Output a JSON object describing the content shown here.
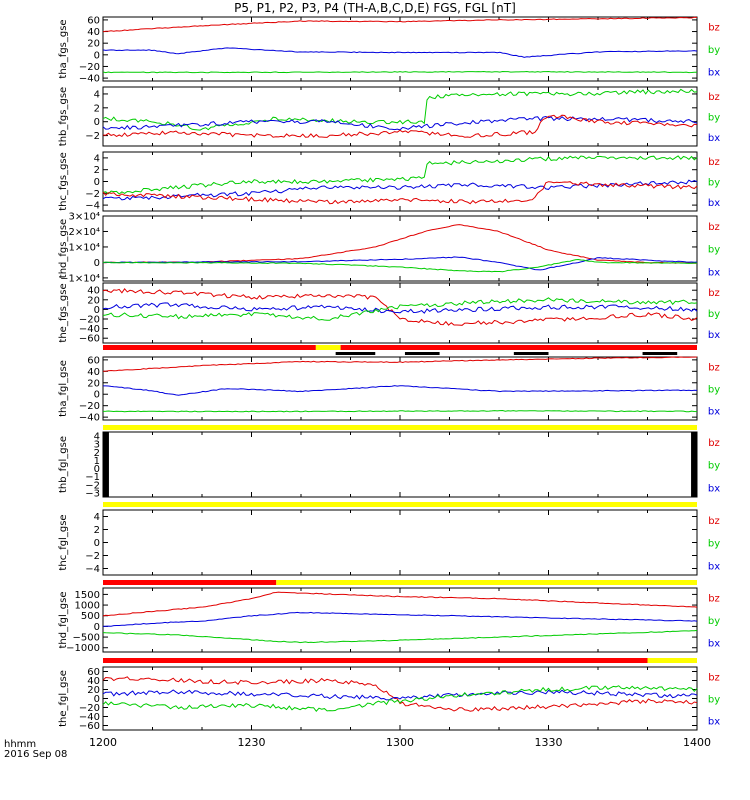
{
  "title": "P5, P1, P2, P3, P4 (TH-A,B,C,D,E) FGS, FGL [nT]",
  "time_label": "hhmm",
  "date_label": "2016 Sep 08",
  "chart_data": {
    "type": "line",
    "x_unit": "hhmm",
    "x_range": [
      "1200",
      "1400"
    ],
    "x_ticks": [
      "1200",
      "1230",
      "1300",
      "1330",
      "1400"
    ],
    "component_colors": {
      "bz": "#e00000",
      "by": "#00cc00",
      "bx": "#0000dd"
    },
    "status_colors": {
      "red": "#ff0000",
      "yellow": "#ffff00",
      "black": "#000000"
    },
    "panels": [
      {
        "ylabel": "tha_fgs_gse",
        "ylim": [
          -45,
          65
        ],
        "yticks": [
          "60",
          "40",
          "20",
          "0",
          "−20",
          "−40"
        ],
        "ytick_values": [
          60,
          40,
          20,
          0,
          -20,
          -40
        ],
        "legend": [
          "bz",
          "by",
          "bx"
        ],
        "series": [
          {
            "name": "bz",
            "x": [
              0,
              20,
              40,
              60,
              80,
              100,
              120
            ],
            "y": [
              40,
              50,
              58,
              57,
              60,
              62,
              64
            ]
          },
          {
            "name": "bx",
            "x": [
              0,
              10,
              15,
              25,
              40,
              60,
              80,
              85,
              100,
              120
            ],
            "y": [
              8,
              8,
              2,
              12,
              5,
              4,
              4,
              -4,
              5,
              7
            ]
          },
          {
            "name": "by",
            "x": [
              0,
              40,
              80,
              120
            ],
            "y": [
              -30,
              -30,
              -29,
              -30
            ]
          }
        ]
      },
      {
        "ylabel": "thb_fgs_gse",
        "ylim": [
          -3.5,
          5
        ],
        "yticks": [
          "4",
          "2",
          "0",
          "−2"
        ],
        "ytick_values": [
          4,
          2,
          0,
          -2
        ],
        "legend": [
          "bz",
          "by",
          "bx"
        ],
        "series": [
          {
            "name": "by",
            "x": [
              0,
              10,
              20,
              35,
              50,
              65,
              65.5,
              80,
              95,
              120
            ],
            "y": [
              0.5,
              0,
              -1,
              0.5,
              0,
              0,
              3.5,
              4,
              4,
              4.5
            ]
          },
          {
            "name": "bx",
            "x": [
              0,
              15,
              30,
              45,
              60,
              75,
              90,
              105,
              120
            ],
            "y": [
              -1,
              -0.5,
              0,
              0,
              -1,
              0,
              0.5,
              0.3,
              0
            ]
          },
          {
            "name": "bz",
            "x": [
              0,
              15,
              30,
              45,
              60,
              75,
              87,
              90,
              100,
              120
            ],
            "y": [
              -2,
              -1.5,
              -2,
              -2,
              -1.5,
              -2,
              -1.5,
              1,
              0,
              -0.5
            ]
          }
        ]
      },
      {
        "ylabel": "thc_fgs_gse",
        "ylim": [
          -5,
          5
        ],
        "yticks": [
          "4",
          "2",
          "0",
          "−2",
          "−4"
        ],
        "ytick_values": [
          4,
          2,
          0,
          -2,
          -4
        ],
        "legend": [
          "bz",
          "by",
          "bx"
        ],
        "series": [
          {
            "name": "by",
            "x": [
              0,
              15,
              30,
              45,
              65,
              65.5,
              80,
              95,
              120
            ],
            "y": [
              -2,
              -1,
              0,
              0,
              0.5,
              3,
              3.5,
              4,
              4
            ]
          },
          {
            "name": "bx",
            "x": [
              0,
              15,
              30,
              45,
              60,
              75,
              90,
              105,
              120
            ],
            "y": [
              -3,
              -2.5,
              -2,
              -1,
              -1,
              -0.5,
              -1,
              -0.5,
              0
            ]
          },
          {
            "name": "bz",
            "x": [
              0,
              15,
              30,
              45,
              60,
              75,
              87,
              90,
              100,
              120
            ],
            "y": [
              -2,
              -2.5,
              -3,
              -3.5,
              -3,
              -3.5,
              -3,
              0,
              -0.5,
              -1
            ]
          }
        ]
      },
      {
        "ylabel": "thd_fgs_gse",
        "ylim": [
          -12000,
          30000
        ],
        "yticks": [
          "3×10⁴",
          "2×10⁴",
          "1×10⁴",
          "0",
          "−1×10⁴"
        ],
        "ytick_values": [
          30000,
          20000,
          10000,
          0,
          -10000
        ],
        "legend": [
          "bz",
          "by",
          "bx"
        ],
        "series": [
          {
            "name": "bz",
            "x": [
              0,
              20,
              40,
              55,
              65,
              72,
              80,
              90,
              100,
              110,
              120
            ],
            "y": [
              0,
              200,
              2500,
              10000,
              20000,
              24500,
              20000,
              8000,
              1500,
              0,
              -500
            ]
          },
          {
            "name": "bx",
            "x": [
              0,
              40,
              60,
              72,
              80,
              88,
              96,
              100,
              120
            ],
            "y": [
              0,
              500,
              2000,
              3500,
              0,
              -5000,
              0,
              3000,
              0
            ]
          },
          {
            "name": "by",
            "x": [
              0,
              40,
              60,
              72,
              80,
              88,
              96,
              100,
              120
            ],
            "y": [
              0,
              -500,
              -3000,
              -5500,
              -6000,
              -3000,
              2000,
              0,
              -500
            ]
          }
        ]
      },
      {
        "ylabel": "the_fgs_gse",
        "ylim": [
          -70,
          55
        ],
        "yticks": [
          "40",
          "20",
          "0",
          "−20",
          "−40",
          "−60"
        ],
        "ytick_values": [
          40,
          20,
          0,
          -20,
          -40,
          -60
        ],
        "legend": [
          "bz",
          "by",
          "bx"
        ],
        "series": [
          {
            "name": "bz",
            "x": [
              0,
              15,
              30,
              45,
              55,
              60,
              70,
              85,
              95,
              110,
              120
            ],
            "y": [
              40,
              35,
              25,
              30,
              25,
              -20,
              -30,
              -25,
              -20,
              -10,
              -20
            ]
          },
          {
            "name": "bx",
            "x": [
              0,
              15,
              30,
              45,
              60,
              75,
              90,
              105,
              120
            ],
            "y": [
              5,
              10,
              0,
              5,
              -5,
              0,
              5,
              5,
              0
            ]
          },
          {
            "name": "by",
            "x": [
              0,
              15,
              30,
              45,
              60,
              75,
              90,
              105,
              120
            ],
            "y": [
              -10,
              -15,
              -10,
              -20,
              5,
              15,
              20,
              15,
              15
            ]
          }
        ],
        "status_bar": [
          {
            "color": "red",
            "from": 0,
            "to": 43
          },
          {
            "color": "yellow",
            "from": 43,
            "to": 48
          },
          {
            "color": "red",
            "from": 48,
            "to": 120
          }
        ],
        "sub_marks": [
          {
            "from": 47,
            "to": 55
          },
          {
            "from": 61,
            "to": 68
          },
          {
            "from": 83,
            "to": 90
          },
          {
            "from": 109,
            "to": 116
          }
        ]
      },
      {
        "ylabel": "tha_fgl_gse",
        "ylim": [
          -45,
          65
        ],
        "yticks": [
          "60",
          "40",
          "20",
          "0",
          "−20",
          "−40"
        ],
        "ytick_values": [
          60,
          40,
          20,
          0,
          -20,
          -40
        ],
        "legend": [
          "bz",
          "by",
          "bx"
        ],
        "series": [
          {
            "name": "bz",
            "x": [
              0,
              20,
              40,
              60,
              80,
              100,
              120
            ],
            "y": [
              40,
              50,
              57,
              56,
              60,
              63,
              65
            ]
          },
          {
            "name": "bx",
            "x": [
              0,
              10,
              15,
              25,
              40,
              60,
              80,
              100,
              120
            ],
            "y": [
              15,
              6,
              -2,
              10,
              5,
              15,
              5,
              6,
              7
            ]
          },
          {
            "name": "by",
            "x": [
              0,
              40,
              80,
              120
            ],
            "y": [
              -30,
              -30,
              -29,
              -30
            ]
          }
        ],
        "status_bar": [
          {
            "color": "yellow",
            "from": 0,
            "to": 120
          }
        ]
      },
      {
        "ylabel": "thb_fgl_gse",
        "ylim": [
          -3.5,
          4.5
        ],
        "yticks": [
          "4",
          "3",
          "2",
          "1",
          "0",
          "−1",
          "−2",
          "−3"
        ],
        "ytick_values": [
          4,
          3,
          2,
          1,
          0,
          -1,
          -2,
          -3
        ],
        "legend": [
          "bz",
          "by",
          "bx"
        ],
        "series": [],
        "edge_blocks": [
          {
            "from": 0,
            "to": 1.2
          },
          {
            "from": 118.8,
            "to": 120
          }
        ],
        "status_bar": [
          {
            "color": "yellow",
            "from": 0,
            "to": 120
          }
        ]
      },
      {
        "ylabel": "thc_fgl_gse",
        "ylim": [
          -5,
          5
        ],
        "yticks": [
          "4",
          "2",
          "0",
          "−2",
          "−4"
        ],
        "ytick_values": [
          4,
          2,
          0,
          -2,
          -4
        ],
        "legend": [
          "bz",
          "by",
          "bx"
        ],
        "series": [],
        "status_bar": [
          {
            "color": "red",
            "from": 0,
            "to": 35
          },
          {
            "color": "yellow",
            "from": 35,
            "to": 120
          }
        ]
      },
      {
        "ylabel": "thd_fgl_gse",
        "ylim": [
          -1200,
          1800
        ],
        "yticks": [
          "1500",
          "1000",
          "500",
          "0",
          "−500",
          "−1000"
        ],
        "ytick_values": [
          1500,
          1000,
          500,
          0,
          -500,
          -1000
        ],
        "legend": [
          "bz",
          "by",
          "bx"
        ],
        "series": [
          {
            "name": "bz",
            "x": [
              0,
              10,
              20,
              30,
              35,
              60,
              80,
              100,
              120
            ],
            "y": [
              500,
              700,
              900,
              1300,
              1600,
              1400,
              1300,
              1100,
              900
            ]
          },
          {
            "name": "bx",
            "x": [
              0,
              10,
              20,
              30,
              40,
              60,
              80,
              100,
              120
            ],
            "y": [
              0,
              150,
              250,
              500,
              650,
              550,
              450,
              350,
              250
            ]
          },
          {
            "name": "by",
            "x": [
              0,
              15,
              25,
              35,
              40,
              60,
              80,
              100,
              120
            ],
            "y": [
              -300,
              -400,
              -550,
              -700,
              -750,
              -650,
              -500,
              -350,
              -200
            ]
          }
        ],
        "status_bar": [
          {
            "color": "red",
            "from": 0,
            "to": 110
          },
          {
            "color": "yellow",
            "from": 110,
            "to": 120
          }
        ]
      },
      {
        "ylabel": "the_fgl_gse",
        "ylim": [
          -70,
          70
        ],
        "yticks": [
          "60",
          "40",
          "20",
          "0",
          "−20",
          "−40",
          "−60"
        ],
        "ytick_values": [
          60,
          40,
          20,
          0,
          -20,
          -40,
          -60
        ],
        "legend": [
          "bz",
          "by",
          "bx"
        ],
        "series": [
          {
            "name": "bz",
            "x": [
              0,
              15,
              30,
              45,
              55,
              60,
              70,
              85,
              95,
              110,
              120
            ],
            "y": [
              45,
              40,
              35,
              40,
              30,
              -10,
              -25,
              -20,
              -15,
              -5,
              -10
            ]
          },
          {
            "name": "bx",
            "x": [
              0,
              15,
              30,
              45,
              60,
              75,
              90,
              105,
              120
            ],
            "y": [
              10,
              15,
              10,
              5,
              0,
              10,
              15,
              10,
              5
            ]
          },
          {
            "name": "by",
            "x": [
              0,
              15,
              30,
              45,
              60,
              75,
              90,
              105,
              120
            ],
            "y": [
              -10,
              -20,
              -15,
              -25,
              -5,
              10,
              20,
              25,
              20
            ]
          }
        ]
      }
    ]
  }
}
